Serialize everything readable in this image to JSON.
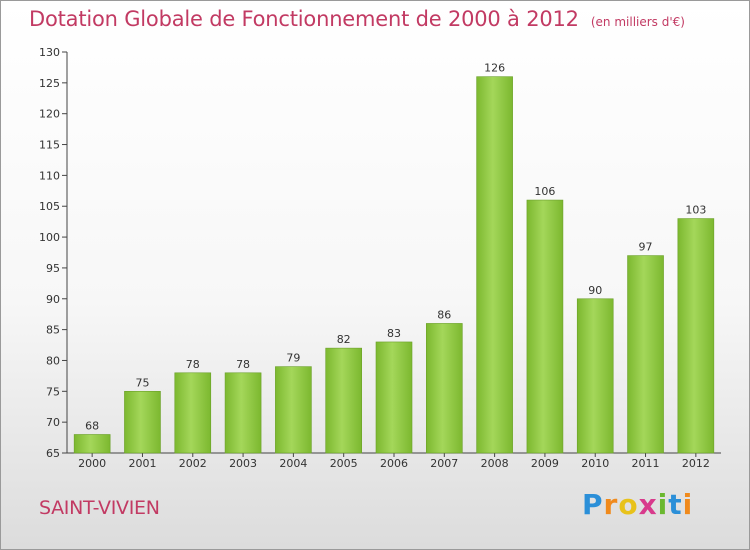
{
  "chart_data": {
    "type": "bar",
    "title": "Dotation Globale de Fonctionnement de 2000 à 2012",
    "subtitle": "(en milliers d'€)",
    "categories": [
      "2000",
      "2001",
      "2002",
      "2003",
      "2004",
      "2005",
      "2006",
      "2007",
      "2008",
      "2009",
      "2010",
      "2011",
      "2012"
    ],
    "values": [
      68,
      75,
      78,
      78,
      79,
      82,
      83,
      86,
      126,
      106,
      90,
      97,
      103
    ],
    "ylim": [
      65,
      130
    ],
    "yticks": [
      65,
      70,
      75,
      80,
      85,
      90,
      95,
      100,
      105,
      110,
      115,
      120,
      125,
      130
    ],
    "grid": false,
    "legend": "none",
    "bar_color": "#7cb82f",
    "bar_color_light": "#a4d75a"
  },
  "footer": {
    "location": "SAINT-VIVIEN",
    "logo": {
      "text": "Proxiti",
      "letters": [
        "P",
        "r",
        "o",
        "x",
        "i",
        "t",
        "i"
      ],
      "colors": [
        "#2b8fd8",
        "#f08a1c",
        "#e8c21a",
        "#d83a8c",
        "#6ab82f",
        "#2b8fd8",
        "#f08a1c"
      ]
    }
  }
}
